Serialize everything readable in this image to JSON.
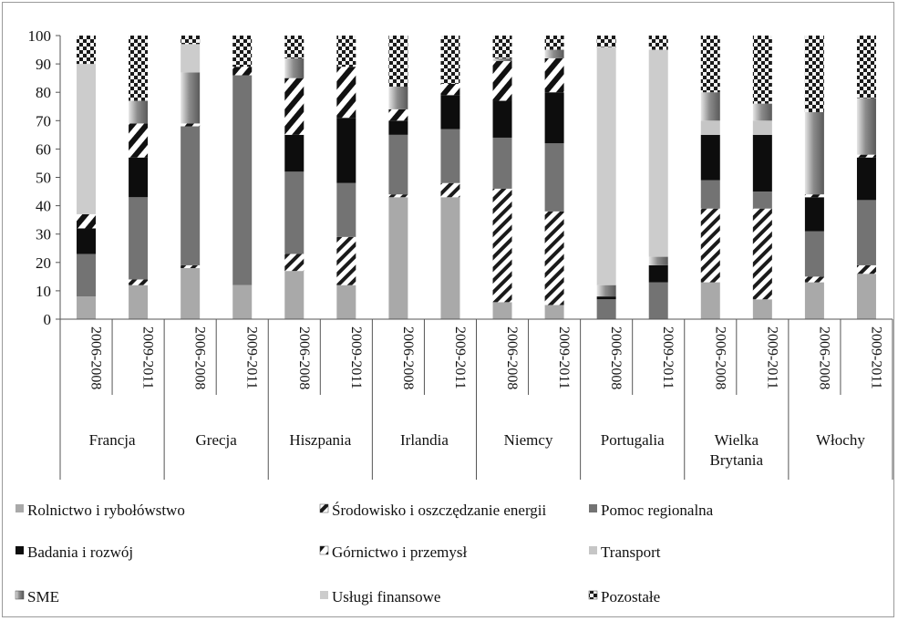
{
  "chart_data": {
    "type": "bar",
    "stacked": true,
    "title": "",
    "xlabel": "",
    "ylabel": "",
    "ylim": [
      0,
      100
    ],
    "yticks": [
      0,
      10,
      20,
      30,
      40,
      50,
      60,
      70,
      80,
      90,
      100
    ],
    "grid": false,
    "legend_placement": "bottom",
    "groups": [
      {
        "name": "Francja",
        "periods": [
          "2006-2008",
          "2009-2011"
        ]
      },
      {
        "name": "Grecja",
        "periods": [
          "2006-2008",
          "2009-2011"
        ]
      },
      {
        "name": "Hiszpania",
        "periods": [
          "2006-2008",
          "2009-2011"
        ]
      },
      {
        "name": "Irlandia",
        "periods": [
          "2006-2008",
          "2009-2011"
        ]
      },
      {
        "name": "Niemcy",
        "periods": [
          "2006-2008",
          "2009-2011"
        ]
      },
      {
        "name": "Portugalia",
        "periods": [
          "2006-2008",
          "2009-2011"
        ]
      },
      {
        "name": "Wielka Brytania",
        "periods": [
          "2006-2008",
          "2009-2011"
        ]
      },
      {
        "name": "Włochy",
        "periods": [
          "2006-2008",
          "2009-2011"
        ]
      }
    ],
    "series": [
      {
        "name": "Rolnictwo i rybołówstwo",
        "color": "#a9a9a9",
        "pattern": "solid",
        "values": [
          8,
          12,
          18,
          12,
          17,
          12,
          43,
          43,
          6,
          5,
          0,
          0,
          13,
          7,
          13,
          16
        ]
      },
      {
        "name": "Środowisko i oszczędzanie energii",
        "color": "#222222",
        "pattern": "diagonal",
        "values": [
          0,
          2,
          1,
          0,
          6,
          17,
          1,
          5,
          40,
          33,
          0,
          0,
          26,
          32,
          2,
          3
        ]
      },
      {
        "name": "Pomoc regionalna",
        "color": "#737373",
        "pattern": "solid",
        "values": [
          15,
          29,
          49,
          74,
          29,
          19,
          21,
          19,
          18,
          24,
          7,
          13,
          10,
          6,
          16,
          23
        ]
      },
      {
        "name": "Badania i rozwój",
        "color": "#0d0d0d",
        "pattern": "solid",
        "values": [
          9,
          14,
          0,
          0,
          13,
          23,
          5,
          12,
          13,
          18,
          1,
          6,
          16,
          20,
          12,
          15
        ]
      },
      {
        "name": "Górnictwo i przemysł",
        "color": "#222222",
        "pattern": "stripes",
        "values": [
          5,
          12,
          1,
          3,
          20,
          18,
          4,
          4,
          14,
          12,
          0,
          0,
          0,
          0,
          1,
          1
        ]
      },
      {
        "name": "Transport",
        "color": "#c6c6c6",
        "pattern": "solid",
        "values": [
          0,
          0,
          0,
          0,
          0,
          0,
          0,
          0,
          0,
          0,
          0,
          0,
          5,
          5,
          0,
          0
        ]
      },
      {
        "name": "SME",
        "color": "#9a9a9a",
        "pattern": "gradient",
        "values": [
          0,
          8,
          18,
          0,
          7,
          0,
          8,
          0,
          1,
          3,
          4,
          3,
          10,
          6,
          29,
          20
        ]
      },
      {
        "name": "Usługi finansowe",
        "color": "#cccccc",
        "pattern": "solid",
        "values": [
          53,
          0,
          10,
          0,
          0,
          0,
          0,
          0,
          0,
          0,
          84,
          73,
          0,
          0,
          0,
          0
        ]
      },
      {
        "name": "Pozostałe",
        "color": "#1a1a1a",
        "pattern": "checker",
        "values": [
          10,
          23,
          3,
          11,
          8,
          11,
          18,
          17,
          8,
          5,
          4,
          5,
          20,
          24,
          27,
          22
        ]
      }
    ]
  }
}
